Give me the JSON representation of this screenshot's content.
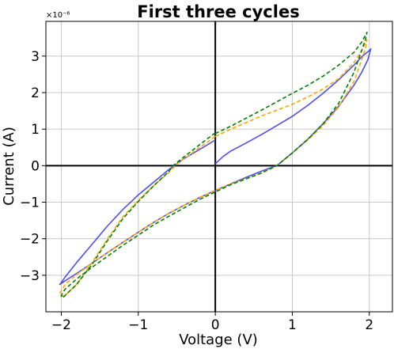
{
  "chart_data": {
    "type": "line",
    "title": "First three cycles",
    "xlabel": "Voltage (V)",
    "ylabel": "Current (A)",
    "y_multiplier": "×10⁻⁶",
    "xlim": [
      -2.2,
      2.3
    ],
    "ylim": [
      -4.0,
      3.95
    ],
    "x_ticks": [
      -2,
      -1,
      0,
      1,
      2
    ],
    "x_tick_labels": [
      "−2",
      "−1",
      "0",
      "1",
      "2"
    ],
    "y_ticks": [
      -3,
      -2,
      -1,
      0,
      1,
      2,
      3
    ],
    "y_tick_labels": [
      "−3",
      "−2",
      "−1",
      "0",
      "1",
      "2",
      "3"
    ],
    "grid": true,
    "zero_axes": true,
    "series": [
      {
        "color": "#4f4ff0",
        "style": "solid",
        "x": [
          0.0,
          0.05,
          0.1,
          0.2,
          0.4,
          0.6,
          0.8,
          1.0,
          1.2,
          1.4,
          1.6,
          1.8,
          1.9,
          2.0,
          2.02,
          1.98,
          1.9,
          1.8,
          1.6,
          1.4,
          1.2,
          1.0,
          0.8,
          0.6,
          0.4,
          0.2,
          0.0,
          -0.2,
          -0.4,
          -0.6,
          -0.8,
          -1.0,
          -1.2,
          -1.4,
          -1.6,
          -1.8,
          -1.95,
          -2.02,
          -2.0,
          -1.95,
          -1.8,
          -1.6,
          -1.4,
          -1.2,
          -1.0,
          -0.8,
          -0.6,
          -0.4,
          -0.2,
          0.0
        ],
        "y": [
          0.05,
          0.15,
          0.25,
          0.4,
          0.62,
          0.85,
          1.1,
          1.35,
          1.65,
          1.98,
          2.35,
          2.75,
          2.98,
          3.15,
          3.2,
          2.9,
          2.55,
          2.2,
          1.62,
          1.15,
          0.72,
          0.35,
          0.0,
          -0.15,
          -0.32,
          -0.5,
          -0.68,
          -0.87,
          -1.08,
          -1.3,
          -1.55,
          -1.82,
          -2.1,
          -2.38,
          -2.67,
          -2.95,
          -3.15,
          -3.25,
          -3.2,
          -3.05,
          -2.65,
          -2.15,
          -1.65,
          -1.2,
          -0.8,
          -0.45,
          -0.1,
          0.2,
          0.45,
          0.7
        ]
      },
      {
        "color": "#ffa500",
        "style": "dashed",
        "x": [
          0.0,
          0.2,
          0.4,
          0.6,
          0.8,
          1.0,
          1.2,
          1.4,
          1.6,
          1.8,
          1.9,
          1.97,
          1.95,
          1.9,
          1.8,
          1.6,
          1.4,
          1.2,
          1.0,
          0.8,
          0.6,
          0.5,
          0.2,
          0.0,
          -0.2,
          -0.4,
          -0.6,
          -0.8,
          -1.0,
          -1.2,
          -1.4,
          -1.6,
          -1.8,
          -1.95,
          -2.02,
          -2.0,
          -1.95,
          -1.8,
          -1.6,
          -1.4,
          -1.2,
          -1.0,
          -0.8,
          -0.6,
          -0.52,
          -0.4,
          -0.2,
          0.0
        ],
        "y": [
          0.8,
          1.0,
          1.18,
          1.36,
          1.52,
          1.68,
          1.88,
          2.1,
          2.38,
          2.82,
          3.15,
          3.45,
          3.2,
          2.9,
          2.3,
          1.6,
          1.1,
          0.7,
          0.35,
          0.0,
          -0.2,
          -0.28,
          -0.5,
          -0.68,
          -0.87,
          -1.08,
          -1.3,
          -1.55,
          -1.82,
          -2.1,
          -2.38,
          -2.67,
          -2.98,
          -3.25,
          -3.5,
          -3.58,
          -3.55,
          -3.25,
          -2.65,
          -2.0,
          -1.4,
          -0.95,
          -0.55,
          -0.18,
          0.0,
          0.2,
          0.5,
          0.8
        ]
      },
      {
        "color": "#008000",
        "style": "dashed",
        "x": [
          0.0,
          0.2,
          0.4,
          0.6,
          0.8,
          1.0,
          1.2,
          1.4,
          1.6,
          1.8,
          1.9,
          1.97,
          1.95,
          1.9,
          1.8,
          1.6,
          1.4,
          1.2,
          1.0,
          0.8,
          0.6,
          0.5,
          0.2,
          0.0,
          -0.2,
          -0.4,
          -0.6,
          -0.8,
          -1.0,
          -1.2,
          -1.4,
          -1.6,
          -1.8,
          -1.95,
          -2.0,
          -1.98,
          -1.95,
          -1.8,
          -1.6,
          -1.4,
          -1.2,
          -1.0,
          -0.8,
          -0.6,
          -0.55,
          -0.4,
          -0.2,
          0.0
        ],
        "y": [
          0.88,
          1.08,
          1.3,
          1.52,
          1.75,
          1.98,
          2.2,
          2.45,
          2.75,
          3.1,
          3.38,
          3.65,
          3.45,
          3.15,
          2.55,
          1.7,
          1.15,
          0.72,
          0.35,
          0.0,
          -0.2,
          -0.28,
          -0.52,
          -0.72,
          -0.92,
          -1.15,
          -1.38,
          -1.62,
          -1.9,
          -2.18,
          -2.48,
          -2.78,
          -3.1,
          -3.38,
          -3.55,
          -3.62,
          -3.55,
          -3.25,
          -2.7,
          -2.05,
          -1.45,
          -0.98,
          -0.55,
          -0.15,
          0.0,
          0.25,
          0.58,
          0.9
        ]
      }
    ]
  }
}
